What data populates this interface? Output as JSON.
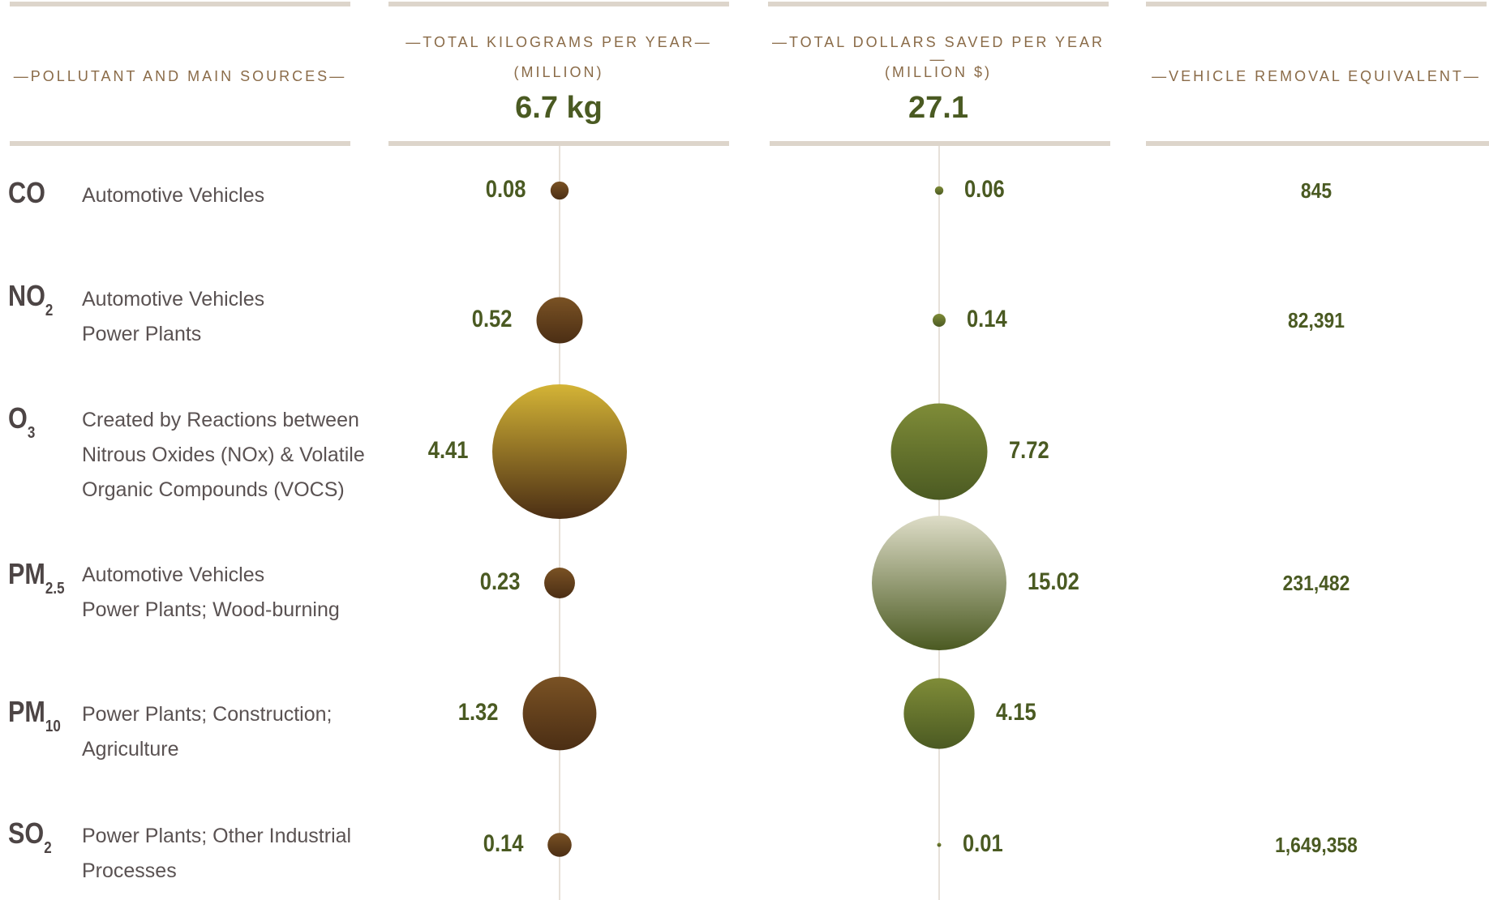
{
  "colors": {
    "header_text": "#8a6b48",
    "value_text": "#4a5a22",
    "rule": "#ddd5cb",
    "kg_bubble_dark": "#4b2e14",
    "kg_bubble_light": "#7a5224",
    "kg_bubble_ozone_top": "#d4b436",
    "dollar_bubble_dark": "#4b5a22",
    "dollar_bubble_light": "#7f8c38",
    "dollar_bubble_pm25_top": "#deddc8"
  },
  "headers": {
    "pollutant": "—POLLUTANT AND MAIN SOURCES—",
    "kg_line1": "—TOTAL KILOGRAMS PER YEAR—",
    "kg_line2": "(MILLION)",
    "kg_total": "6.7 kg",
    "dollars_line1": "—TOTAL DOLLARS SAVED PER YEAR—",
    "dollars_line2": "(MILLION $)",
    "dollars_total": "27.1",
    "vehicle": "—VEHICLE REMOVAL EQUIVALENT—"
  },
  "chart_data": {
    "type": "bubble-table",
    "columns": [
      "Pollutant and main sources",
      "Total kilograms per year (million)",
      "Total dollars saved per year (million $)",
      "Vehicle removal equivalent"
    ],
    "rows": [
      {
        "symbol": "CO",
        "sub": "",
        "sources": [
          "Automotive Vehicles"
        ],
        "kg": 0.08,
        "kg_label": "0.08",
        "dollars": 0.06,
        "dollars_label": "0.06",
        "vehicles": "845"
      },
      {
        "symbol": "NO",
        "sub": "2",
        "sources": [
          "Automotive Vehicles",
          "Power Plants"
        ],
        "kg": 0.52,
        "kg_label": "0.52",
        "dollars": 0.14,
        "dollars_label": "0.14",
        "vehicles": "82,391"
      },
      {
        "symbol": "O",
        "sub": "3",
        "sources": [
          "Created by Reactions between",
          "Nitrous Oxides (NOx) & Volatile",
          "Organic Compounds (VOCS)"
        ],
        "kg": 4.41,
        "kg_label": "4.41",
        "dollars": 7.72,
        "dollars_label": "7.72",
        "vehicles": ""
      },
      {
        "symbol": "PM",
        "sub": "2.5",
        "sources": [
          "Automotive Vehicles",
          "Power Plants; Wood-burning"
        ],
        "kg": 0.23,
        "kg_label": "0.23",
        "dollars": 15.02,
        "dollars_label": "15.02",
        "vehicles": "231,482"
      },
      {
        "symbol": "PM",
        "sub": "10",
        "sources": [
          "Power Plants; Construction;",
          "Agriculture"
        ],
        "kg": 1.32,
        "kg_label": "1.32",
        "dollars": 4.15,
        "dollars_label": "4.15",
        "vehicles": ""
      },
      {
        "symbol": "SO",
        "sub": "2",
        "sources": [
          "Power Plants; Other Industrial",
          "Processes"
        ],
        "kg": 0.14,
        "kg_label": "0.14",
        "dollars": 0.01,
        "dollars_label": "0.01",
        "vehicles": "1,649,358"
      }
    ]
  }
}
